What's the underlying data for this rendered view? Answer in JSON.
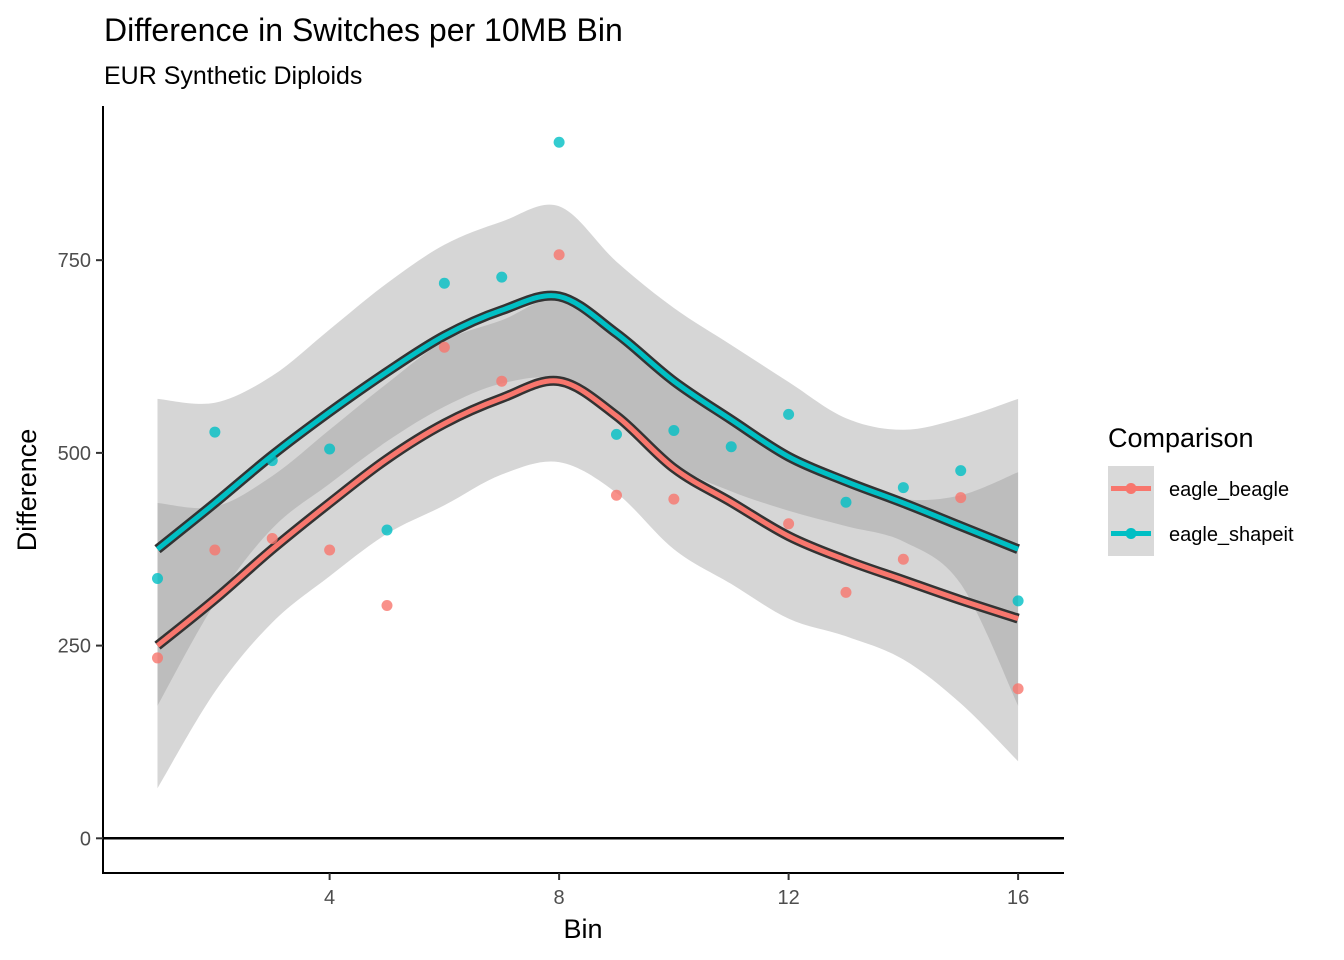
{
  "chart_data": {
    "type": "scatter",
    "title": "Difference in Switches per 10MB Bin",
    "subtitle": "EUR Synthetic Diploids",
    "xlabel": "Bin",
    "ylabel": "Difference",
    "xlim": [
      0.05,
      16.8
    ],
    "ylim": [
      -45,
      950
    ],
    "x_ticks": [
      4,
      8,
      12,
      16
    ],
    "y_ticks": [
      0,
      250,
      500,
      750
    ],
    "hline": 0,
    "legend": {
      "title": "Comparison",
      "position": "right"
    },
    "series": [
      {
        "name": "eagle_beagle",
        "color": "#F8766D",
        "points": [
          [
            1,
            234
          ],
          [
            2,
            374
          ],
          [
            3,
            389
          ],
          [
            4,
            374
          ],
          [
            5,
            302
          ],
          [
            6,
            637
          ],
          [
            7,
            593
          ],
          [
            8,
            757
          ],
          [
            9,
            445
          ],
          [
            10,
            440
          ],
          [
            11,
            null
          ],
          [
            12,
            408
          ],
          [
            13,
            319
          ],
          [
            14,
            362
          ],
          [
            15,
            442
          ],
          [
            16,
            194
          ]
        ],
        "smooth": [
          [
            1,
            250
          ],
          [
            2,
            310
          ],
          [
            3,
            375
          ],
          [
            4,
            435
          ],
          [
            5,
            492
          ],
          [
            6,
            538
          ],
          [
            7,
            571
          ],
          [
            8,
            593
          ],
          [
            9,
            548
          ],
          [
            10,
            480
          ],
          [
            11,
            436
          ],
          [
            12,
            392
          ],
          [
            13,
            361
          ],
          [
            14,
            335
          ],
          [
            15,
            309
          ],
          [
            16,
            285
          ]
        ],
        "ci_lower": [
          [
            1,
            65
          ],
          [
            2,
            190
          ],
          [
            3,
            280
          ],
          [
            4,
            340
          ],
          [
            5,
            395
          ],
          [
            6,
            432
          ],
          [
            7,
            472
          ],
          [
            8,
            488
          ],
          [
            9,
            448
          ],
          [
            10,
            375
          ],
          [
            11,
            330
          ],
          [
            12,
            285
          ],
          [
            13,
            262
          ],
          [
            14,
            232
          ],
          [
            15,
            175
          ],
          [
            16,
            100
          ]
        ],
        "ci_upper": [
          [
            1,
            435
          ],
          [
            2,
            430
          ],
          [
            3,
            470
          ],
          [
            4,
            530
          ],
          [
            5,
            590
          ],
          [
            6,
            645
          ],
          [
            7,
            672
          ],
          [
            8,
            700
          ],
          [
            9,
            648
          ],
          [
            10,
            585
          ],
          [
            11,
            543
          ],
          [
            12,
            500
          ],
          [
            13,
            462
          ],
          [
            14,
            440
          ],
          [
            15,
            445
          ],
          [
            16,
            475
          ]
        ]
      },
      {
        "name": "eagle_shapeit",
        "color": "#00BFC4",
        "points": [
          [
            1,
            337
          ],
          [
            2,
            527
          ],
          [
            3,
            490
          ],
          [
            4,
            505
          ],
          [
            5,
            400
          ],
          [
            6,
            720
          ],
          [
            7,
            728
          ],
          [
            8,
            903
          ],
          [
            9,
            524
          ],
          [
            10,
            529
          ],
          [
            11,
            508
          ],
          [
            12,
            550
          ],
          [
            13,
            436
          ],
          [
            14,
            455
          ],
          [
            15,
            477
          ],
          [
            16,
            308
          ]
        ],
        "smooth": [
          [
            1,
            375
          ],
          [
            2,
            435
          ],
          [
            3,
            497
          ],
          [
            4,
            553
          ],
          [
            5,
            605
          ],
          [
            6,
            652
          ],
          [
            7,
            685
          ],
          [
            8,
            703
          ],
          [
            9,
            655
          ],
          [
            10,
            593
          ],
          [
            11,
            543
          ],
          [
            12,
            495
          ],
          [
            13,
            463
          ],
          [
            14,
            435
          ],
          [
            15,
            405
          ],
          [
            16,
            375
          ]
        ],
        "ci_lower": [
          [
            1,
            172
          ],
          [
            2,
            305
          ],
          [
            3,
            402
          ],
          [
            4,
            460
          ],
          [
            5,
            515
          ],
          [
            6,
            560
          ],
          [
            7,
            590
          ],
          [
            8,
            595
          ],
          [
            9,
            550
          ],
          [
            10,
            485
          ],
          [
            11,
            450
          ],
          [
            12,
            425
          ],
          [
            13,
            405
          ],
          [
            14,
            385
          ],
          [
            15,
            330
          ],
          [
            16,
            172
          ]
        ],
        "ci_upper": [
          [
            1,
            570
          ],
          [
            2,
            565
          ],
          [
            3,
            600
          ],
          [
            4,
            660
          ],
          [
            5,
            720
          ],
          [
            6,
            770
          ],
          [
            7,
            800
          ],
          [
            8,
            820
          ],
          [
            9,
            748
          ],
          [
            10,
            688
          ],
          [
            11,
            640
          ],
          [
            12,
            592
          ],
          [
            13,
            545
          ],
          [
            14,
            530
          ],
          [
            15,
            545
          ],
          [
            16,
            570
          ]
        ]
      }
    ]
  }
}
